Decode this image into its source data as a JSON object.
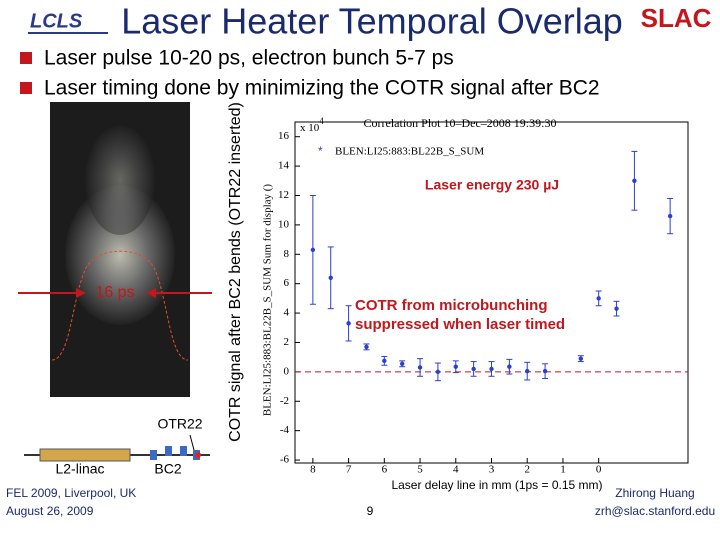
{
  "header": {
    "logo_left": "LCLS",
    "title": "Laser Heater Temporal Overlap",
    "logo_right": "SLAC"
  },
  "bullets": [
    "Laser pulse 10-20 ps, electron bunch 5-7 ps",
    "Laser timing done by minimizing the COTR signal after BC2"
  ],
  "image": {
    "width_label": "16 ps",
    "screen_label": "OTR22",
    "linac_label": "L2-linac",
    "chicane_label": "BC2"
  },
  "outer_y_label": "COTR signal after BC2 bends (OTR22 inserted)",
  "chart_data": {
    "type": "scatter",
    "title": "Correlation Plot 10–Dec–2008 19:39:30",
    "y_label": "BLEN:LI25:883:BL22B_S_SUM Sum for display ()",
    "x_label": "Laser delay line in mm (1ps = 0.15 mm)",
    "y_scale_base": "x 10",
    "y_scale_exp": "4",
    "annotations": [
      "Laser energy 230 µJ",
      "COTR from microbunching suppressed when laser timed"
    ],
    "xlim": [
      8.5,
      -2.5
    ],
    "xticks": [
      8,
      7,
      6,
      5,
      4,
      3,
      2,
      1,
      0
    ],
    "ylim": [
      -6.2,
      17
    ],
    "yticks": [
      -6,
      -4,
      -2,
      0,
      2,
      4,
      6,
      8,
      10,
      12,
      14,
      16
    ],
    "hline": 0,
    "series": [
      {
        "name": "BLEN:LI25:883:BL22B_S_SUM",
        "color": "#2b3fd0",
        "x": [
          8.0,
          7.5,
          7.0,
          6.5,
          6.0,
          5.5,
          5.0,
          4.5,
          4.0,
          3.5,
          3.0,
          2.5,
          2.0,
          1.5,
          0.5,
          0.0,
          -0.5,
          -1.0,
          -2.0
        ],
        "values": [
          8.3,
          6.4,
          3.3,
          1.7,
          0.75,
          0.55,
          0.3,
          0.0,
          0.35,
          0.2,
          0.2,
          0.35,
          0.05,
          0.05,
          0.9,
          5.0,
          4.3,
          13.0,
          10.6
        ],
        "errors": [
          3.7,
          2.1,
          1.2,
          0.2,
          0.3,
          0.2,
          0.6,
          0.6,
          0.4,
          0.5,
          0.5,
          0.5,
          0.6,
          0.5,
          0.2,
          0.5,
          0.5,
          2.0,
          1.2
        ]
      }
    ]
  },
  "footer": {
    "conference": "FEL 2009, Liverpool, UK",
    "date": "August 26, 2009",
    "page": "9",
    "author": "Zhirong Huang",
    "email": "zrh@slac.stanford.edu"
  }
}
